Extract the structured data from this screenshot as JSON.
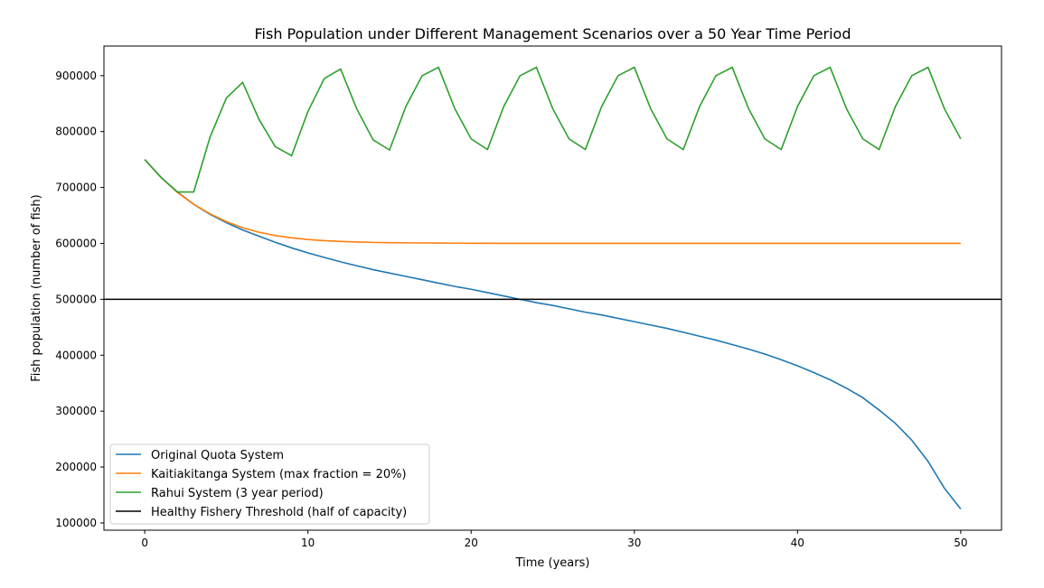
{
  "chart_data": {
    "type": "line",
    "title": "Fish Population under Different Management Scenarios over a 50 Year Time Period",
    "xlabel": "Time (years)",
    "ylabel": "Fish population (number of fish)",
    "xlim": [
      -2.5,
      52.5
    ],
    "ylim": [
      87000,
      953000
    ],
    "xticks": [
      0,
      10,
      20,
      30,
      40,
      50
    ],
    "yticks": [
      100000,
      200000,
      300000,
      400000,
      500000,
      600000,
      700000,
      800000,
      900000
    ],
    "grid": false,
    "legend_position": "lower-left",
    "x": [
      0,
      1,
      2,
      3,
      4,
      5,
      6,
      7,
      8,
      9,
      10,
      11,
      12,
      13,
      14,
      15,
      16,
      17,
      18,
      19,
      20,
      21,
      22,
      23,
      24,
      25,
      26,
      27,
      28,
      29,
      30,
      31,
      32,
      33,
      34,
      35,
      36,
      37,
      38,
      39,
      40,
      41,
      42,
      43,
      44,
      45,
      46,
      47,
      48,
      49,
      50
    ],
    "series": [
      {
        "name": "Original Quota System",
        "color": "#1f77b4",
        "values": [
          750000,
          718000,
          692000,
          670000,
          652000,
          637000,
          624000,
          613000,
          602000,
          592000,
          583000,
          575000,
          567000,
          560000,
          553000,
          547000,
          541000,
          535000,
          529000,
          523000,
          518000,
          512000,
          506000,
          500000,
          494000,
          489000,
          483000,
          477000,
          472000,
          466000,
          460000,
          454000,
          448000,
          441000,
          434000,
          427000,
          419000,
          411000,
          402000,
          392000,
          381000,
          369000,
          356000,
          341000,
          324000,
          302000,
          278000,
          248000,
          210000,
          162000,
          125000
        ]
      },
      {
        "name": "Kaitiakitanga System (max fraction = 20%)",
        "color": "#ff7f0e",
        "values": [
          750000,
          718000,
          691000,
          670000,
          653000,
          639000,
          628000,
          620000,
          614000,
          610000,
          607000,
          605000,
          603500,
          602500,
          601800,
          601300,
          601000,
          600800,
          600600,
          600400,
          600300,
          600200,
          600150,
          600100,
          600050,
          600000,
          600000,
          600000,
          600000,
          600000,
          600000,
          600000,
          600000,
          600000,
          600000,
          600000,
          600000,
          600000,
          600000,
          600000,
          600000,
          600000,
          600000,
          600000,
          600000,
          600000,
          600000,
          600000,
          600000,
          600000,
          600000
        ]
      },
      {
        "name": "Rahui System (3 year period)",
        "color": "#2ca02c",
        "values": [
          750000,
          718000,
          692000,
          692000,
          790000,
          860000,
          888000,
          822000,
          773000,
          757000,
          836000,
          895000,
          912000,
          840000,
          785000,
          767000,
          845000,
          900000,
          915000,
          841000,
          787000,
          768000,
          845000,
          900000,
          915000,
          841000,
          787000,
          768000,
          845000,
          900000,
          915000,
          841000,
          787000,
          768000,
          845000,
          900000,
          915000,
          841000,
          787000,
          768000,
          845000,
          900000,
          915000,
          841000,
          787000,
          768000,
          845000,
          900000,
          915000,
          841000,
          787000
        ]
      }
    ],
    "hlines": [
      {
        "name": "Healthy Fishery Threshold (half of capacity)",
        "y": 500000,
        "color": "#000000"
      }
    ]
  }
}
